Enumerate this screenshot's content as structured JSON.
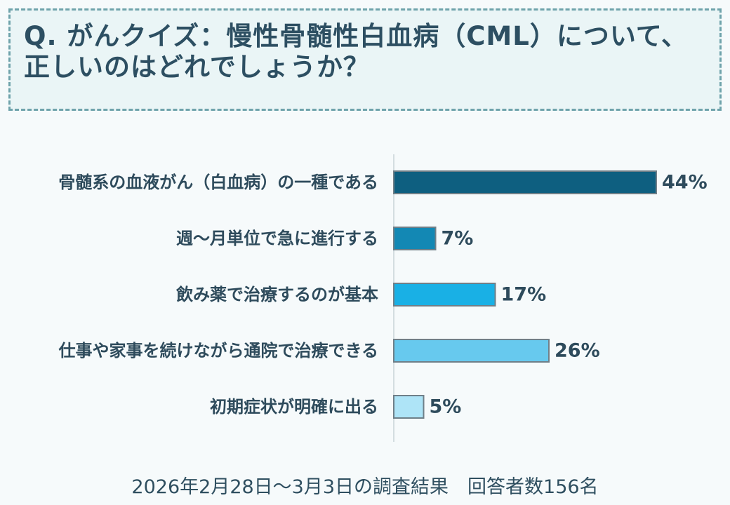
{
  "question": {
    "text": "Q. がんクイズ：慢性骨髄性白血病（CML）について、正しいのはどれでしょうか？"
  },
  "chart_data": {
    "type": "bar",
    "orientation": "horizontal",
    "categories": [
      "骨髄系の血液がん（白血病）の一種である",
      "週～月単位で急に進行する",
      "飲み薬で治療するのが基本",
      "仕事や家事を続けながら通院で治療できる",
      "初期症状が明確に出る"
    ],
    "values": [
      44,
      7,
      17,
      26,
      5
    ],
    "value_labels": [
      "44%",
      "7%",
      "17%",
      "26%",
      "5%"
    ],
    "unit": "%",
    "bar_colors": [
      "#0e5f80",
      "#1388b4",
      "#19b0e5",
      "#67c9ee",
      "#aee4f7"
    ],
    "xlim": [
      0,
      44
    ],
    "title": "",
    "xlabel": "",
    "ylabel": ""
  },
  "footer": {
    "text": "2026年2月28日～3月3日の調査結果　回答者数156名"
  }
}
